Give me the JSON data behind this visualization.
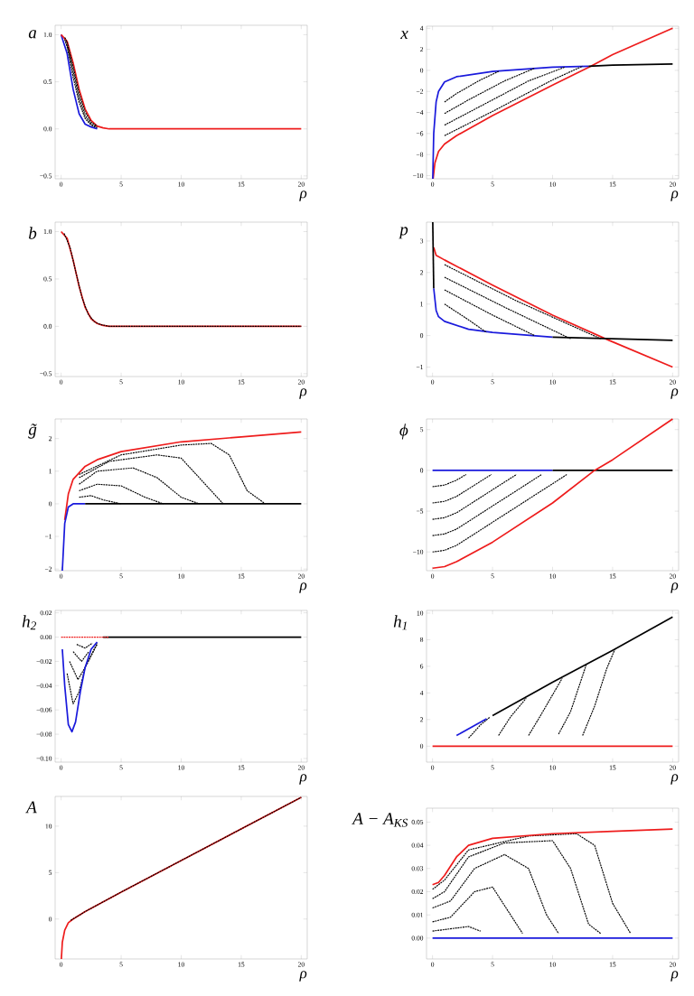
{
  "chart_data": [
    {
      "type": "line",
      "ylabel": "a",
      "xlabel": "ρ",
      "xlim": [
        -0.5,
        20.5
      ],
      "ylim": [
        -0.53,
        1.1
      ],
      "xticks": [
        0,
        5,
        10,
        15,
        20
      ],
      "yticks": [
        {
          "value": -0.5,
          "label": "−0.5"
        },
        {
          "value": 0,
          "label": "0.0"
        },
        {
          "value": 0.5,
          "label": "0.5"
        },
        {
          "value": 1,
          "label": "1.0"
        }
      ],
      "series": [
        {
          "color": "#000000",
          "line_style": "dashed",
          "x": [
            0.3,
            0.5,
            1,
            1.5,
            2,
            2.5,
            3
          ],
          "values": [
            0.95,
            0.87,
            0.55,
            0.28,
            0.11,
            0.04,
            0.01
          ]
        },
        {
          "color": "#000000",
          "line_style": "dashed",
          "x": [
            0.3,
            0.5,
            1,
            1.5,
            2,
            2.5,
            3
          ],
          "values": [
            0.96,
            0.9,
            0.61,
            0.33,
            0.14,
            0.05,
            0.02
          ]
        },
        {
          "color": "#1a1adc",
          "x": [
            0,
            0.5,
            1,
            1.5,
            2,
            2.5,
            3
          ],
          "values": [
            1,
            0.8,
            0.42,
            0.16,
            0.05,
            0.02,
            0
          ]
        },
        {
          "color": "#ee1c1c",
          "x": [
            0,
            0.5,
            1,
            1.5,
            2,
            2.5,
            3,
            3.5,
            4,
            5,
            20
          ],
          "values": [
            1,
            0.93,
            0.7,
            0.42,
            0.21,
            0.09,
            0.03,
            0.01,
            0,
            0,
            0
          ]
        },
        {
          "color": "#000000",
          "line_style": "dashed",
          "x": [
            0.3,
            0.5,
            1,
            1.5,
            2,
            2.5,
            3
          ],
          "values": [
            0.97,
            0.92,
            0.66,
            0.38,
            0.18,
            0.07,
            0.03
          ]
        }
      ]
    },
    {
      "type": "line",
      "ylabel": "x",
      "xlabel": "ρ",
      "xlim": [
        -0.5,
        20.5
      ],
      "ylim": [
        -10.3,
        4.2
      ],
      "xticks": [
        0,
        5,
        10,
        15,
        20
      ],
      "yticks": [
        {
          "value": -10,
          "label": "−10"
        },
        {
          "value": -8,
          "label": "−8"
        },
        {
          "value": -6,
          "label": "−6"
        },
        {
          "value": -4,
          "label": "−4"
        },
        {
          "value": -2,
          "label": "−2"
        },
        0,
        2,
        4
      ],
      "series": [
        {
          "color": "#ee1c1c",
          "x": [
            0.05,
            0.2,
            0.5,
            1,
            2,
            5,
            10,
            13.2,
            15,
            20
          ],
          "values": [
            -10.3,
            -8.8,
            -7.7,
            -7,
            -6.2,
            -4.3,
            -1.4,
            0.4,
            1.5,
            4
          ]
        },
        {
          "color": "#1a1adc",
          "x": [
            0.02,
            0.1,
            0.3,
            0.5,
            1,
            2,
            5,
            10,
            13
          ],
          "values": [
            -10.3,
            -6,
            -3,
            -2,
            -1.1,
            -0.6,
            -0.1,
            0.3,
            0.4
          ]
        },
        {
          "color": "#000000",
          "x": [
            13,
            15,
            20
          ],
          "values": [
            0.4,
            0.5,
            0.6
          ]
        },
        {
          "color": "#000000",
          "line_style": "dashed",
          "x": [
            1,
            2,
            4,
            5.5
          ],
          "values": [
            -3,
            -2.2,
            -0.9,
            -0.1
          ]
        },
        {
          "color": "#000000",
          "line_style": "dashed",
          "x": [
            1,
            3,
            6,
            8.5
          ],
          "values": [
            -4.1,
            -2.8,
            -1,
            0.2
          ]
        },
        {
          "color": "#000000",
          "line_style": "dashed",
          "x": [
            1,
            4,
            8,
            11
          ],
          "values": [
            -5.2,
            -3.4,
            -1,
            0.3
          ]
        },
        {
          "color": "#000000",
          "line_style": "dashed",
          "x": [
            1,
            5,
            10,
            12.5
          ],
          "values": [
            -6.2,
            -3.9,
            -0.9,
            0.4
          ]
        }
      ]
    },
    {
      "type": "line",
      "ylabel": "b",
      "xlabel": "ρ",
      "xlim": [
        -0.5,
        20.5
      ],
      "ylim": [
        -0.53,
        1.1
      ],
      "xticks": [
        0,
        5,
        10,
        15,
        20
      ],
      "yticks": [
        {
          "value": -0.5,
          "label": "−0.5"
        },
        {
          "value": 0,
          "label": "0.0"
        },
        {
          "value": 0.5,
          "label": "0.5"
        },
        {
          "value": 1,
          "label": "1.0"
        }
      ],
      "series": [
        {
          "color": "#ee1c1c",
          "x": [
            0,
            0.5,
            1,
            1.5,
            2,
            2.5,
            3,
            3.5,
            4,
            5,
            20
          ],
          "values": [
            1,
            0.93,
            0.7,
            0.42,
            0.2,
            0.08,
            0.03,
            0.01,
            0,
            0,
            0
          ]
        },
        {
          "color": "#000000",
          "line_style": "dashed",
          "x": [
            0.25,
            0.75,
            1.25,
            1.75,
            2.25,
            2.75,
            3.25,
            4,
            20
          ],
          "values": [
            0.98,
            0.83,
            0.56,
            0.3,
            0.13,
            0.05,
            0.02,
            0,
            0
          ]
        }
      ]
    },
    {
      "type": "line",
      "ylabel": "p",
      "xlabel": "ρ",
      "xlim": [
        -0.5,
        20.5
      ],
      "ylim": [
        -1.3,
        3.6
      ],
      "xticks": [
        0,
        5,
        10,
        15,
        20
      ],
      "yticks": [
        {
          "value": -1,
          "label": "−1"
        },
        0,
        1,
        2,
        3
      ],
      "series": [
        {
          "color": "#ee1c1c",
          "x": [
            0.1,
            0.3,
            1,
            5,
            10,
            14.7,
            20
          ],
          "values": [
            2.8,
            2.55,
            2.4,
            1.6,
            0.65,
            -0.15,
            -1
          ]
        },
        {
          "color": "#1a1adc",
          "x": [
            0.1,
            0.3,
            0.5,
            1,
            3,
            5,
            10
          ],
          "values": [
            1.5,
            0.8,
            0.6,
            0.45,
            0.2,
            0.1,
            -0.05
          ]
        },
        {
          "color": "#000000",
          "x": [
            0.02,
            0.1
          ],
          "values": [
            3.6,
            1.5
          ]
        },
        {
          "color": "#000000",
          "x": [
            10,
            15,
            20
          ],
          "values": [
            -0.05,
            -0.1,
            -0.15
          ]
        },
        {
          "color": "#000000",
          "line_style": "dashed",
          "x": [
            1,
            3,
            4.5
          ],
          "values": [
            1.0,
            0.5,
            0.1
          ]
        },
        {
          "color": "#000000",
          "line_style": "dashed",
          "x": [
            1,
            5,
            8.5
          ],
          "values": [
            1.45,
            0.65,
            0.0
          ]
        },
        {
          "color": "#000000",
          "line_style": "dashed",
          "x": [
            1,
            6,
            11.5
          ],
          "values": [
            1.85,
            0.9,
            -0.1
          ]
        },
        {
          "color": "#000000",
          "line_style": "dashed",
          "x": [
            1,
            7,
            14
          ],
          "values": [
            2.25,
            1.1,
            -0.1
          ]
        }
      ]
    },
    {
      "type": "line",
      "ylabel": "g̃",
      "xlabel": "ρ",
      "xlim": [
        -0.5,
        20.5
      ],
      "ylim": [
        -2.05,
        2.6
      ],
      "xticks": [
        0,
        5,
        10,
        15,
        20
      ],
      "yticks": [
        {
          "value": -2,
          "label": "−2"
        },
        {
          "value": -1,
          "label": "−1"
        },
        0,
        1,
        2
      ],
      "series": [
        {
          "color": "#000000",
          "line_style": "dashed",
          "x": [
            1.5,
            5,
            10,
            12.5,
            14,
            15.5,
            17
          ],
          "values": [
            0.9,
            1.5,
            1.8,
            1.85,
            1.5,
            0.4,
            0
          ]
        },
        {
          "color": "#000000",
          "line_style": "dashed",
          "x": [
            1.5,
            4,
            8,
            10,
            12,
            13.5
          ],
          "values": [
            0.8,
            1.3,
            1.5,
            1.4,
            0.6,
            0
          ]
        },
        {
          "color": "#000000",
          "line_style": "dashed",
          "x": [
            1.5,
            3,
            6,
            8,
            10,
            11.5
          ],
          "values": [
            0.6,
            1.0,
            1.1,
            0.8,
            0.2,
            0
          ]
        },
        {
          "color": "#000000",
          "line_style": "dashed",
          "x": [
            1.5,
            3,
            5,
            7,
            8.5
          ],
          "values": [
            0.4,
            0.6,
            0.55,
            0.2,
            0
          ]
        },
        {
          "color": "#000000",
          "line_style": "dashed",
          "x": [
            1.5,
            2.5,
            3.5,
            5
          ],
          "values": [
            0.2,
            0.25,
            0.12,
            0
          ]
        },
        {
          "color": "#ee1c1c",
          "x": [
            0.3,
            0.6,
            1,
            2,
            3,
            5,
            10,
            15,
            20
          ],
          "values": [
            -0.5,
            0.3,
            0.75,
            1.15,
            1.35,
            1.6,
            1.9,
            2.05,
            2.2
          ]
        },
        {
          "color": "#1a1adc",
          "x": [
            0.1,
            0.3,
            0.6,
            1,
            2
          ],
          "values": [
            -2.05,
            -0.6,
            -0.1,
            0,
            0
          ]
        },
        {
          "color": "#000000",
          "x": [
            2,
            20
          ],
          "values": [
            0,
            0
          ]
        }
      ]
    },
    {
      "type": "line",
      "ylabel": "ϕ",
      "xlabel": "ρ",
      "xlim": [
        -0.5,
        20.5
      ],
      "ylim": [
        -12.3,
        6.3
      ],
      "xticks": [
        0,
        5,
        10,
        15,
        20
      ],
      "yticks": [
        {
          "value": -10,
          "label": "−10"
        },
        {
          "value": -5,
          "label": "−5"
        },
        0,
        5
      ],
      "series": [
        {
          "color": "#000000",
          "line_style": "dashed",
          "x": [
            0,
            1,
            2,
            2.8
          ],
          "values": [
            -2,
            -1.8,
            -1.2,
            -0.5
          ]
        },
        {
          "color": "#000000",
          "line_style": "dashed",
          "x": [
            0,
            1,
            2,
            4.9
          ],
          "values": [
            -4,
            -3.8,
            -3.2,
            -0.5
          ]
        },
        {
          "color": "#000000",
          "line_style": "dashed",
          "x": [
            0,
            1,
            2,
            7
          ],
          "values": [
            -6,
            -5.8,
            -5.2,
            -0.5
          ]
        },
        {
          "color": "#000000",
          "line_style": "dashed",
          "x": [
            0,
            1,
            2,
            9.1
          ],
          "values": [
            -8,
            -7.8,
            -7.2,
            -0.5
          ]
        },
        {
          "color": "#000000",
          "line_style": "dashed",
          "x": [
            0,
            1,
            2,
            11.2
          ],
          "values": [
            -10,
            -9.8,
            -9.2,
            -0.5
          ]
        },
        {
          "color": "#1a1adc",
          "x": [
            0,
            10
          ],
          "values": [
            0,
            0
          ]
        },
        {
          "color": "#000000",
          "x": [
            10,
            20
          ],
          "values": [
            0,
            0
          ]
        },
        {
          "color": "#ee1c1c",
          "x": [
            0,
            1,
            2,
            5,
            10,
            13.5,
            15,
            20
          ],
          "values": [
            -12,
            -11.8,
            -11.2,
            -8.8,
            -4,
            0,
            1.3,
            6.3
          ]
        }
      ]
    },
    {
      "type": "line",
      "ylabel": "h$_{2}$",
      "xlabel": "ρ",
      "xlim": [
        -0.5,
        20.5
      ],
      "ylim": [
        -0.103,
        0.022
      ],
      "xticks": [
        0,
        5,
        10,
        15,
        20
      ],
      "yticks": [
        {
          "value": -0.1,
          "label": "−0.10"
        },
        {
          "value": -0.08,
          "label": "−0.08"
        },
        {
          "value": -0.06,
          "label": "−0.06"
        },
        {
          "value": -0.04,
          "label": "−0.04"
        },
        {
          "value": -0.02,
          "label": "−0.02"
        },
        {
          "value": 0,
          "label": "0.00"
        },
        0.02
      ],
      "series": [
        {
          "color": "#000000",
          "line_style": "dashed",
          "x": [
            0.5,
            1,
            1.5,
            2,
            3
          ],
          "values": [
            -0.03,
            -0.055,
            -0.045,
            -0.025,
            -0.005
          ]
        },
        {
          "color": "#000000",
          "line_style": "dashed",
          "x": [
            0.7,
            1.4,
            2,
            3
          ],
          "values": [
            -0.02,
            -0.035,
            -0.025,
            -0.006
          ]
        },
        {
          "color": "#000000",
          "line_style": "dashed",
          "x": [
            1,
            1.7,
            2.3
          ],
          "values": [
            -0.012,
            -0.02,
            -0.012
          ]
        },
        {
          "color": "#000000",
          "line_style": "dashed",
          "x": [
            1.3,
            2,
            2.6
          ],
          "values": [
            -0.006,
            -0.009,
            -0.005
          ]
        },
        {
          "color": "#1a1adc",
          "x": [
            0.1,
            0.3,
            0.6,
            0.9,
            1.2,
            1.6,
            2,
            2.5,
            3
          ],
          "values": [
            -0.01,
            -0.04,
            -0.072,
            -0.078,
            -0.07,
            -0.045,
            -0.025,
            -0.01,
            -0.004
          ]
        },
        {
          "color": "#000000",
          "x": [
            3.5,
            20
          ],
          "values": [
            0,
            0
          ]
        },
        {
          "color": "#ee1c1c",
          "line_style": "dashed",
          "x": [
            0,
            4
          ],
          "values": [
            0,
            0
          ]
        }
      ]
    },
    {
      "type": "line",
      "ylabel": "h$_{1}$",
      "xlabel": "ρ",
      "xlim": [
        -0.5,
        20.5
      ],
      "ylim": [
        -1.2,
        10.2
      ],
      "xticks": [
        0,
        5,
        10,
        15,
        20
      ],
      "yticks": [
        0,
        2,
        4,
        6,
        8,
        10
      ],
      "series": [
        {
          "color": "#000000",
          "line_style": "dashed",
          "x": [
            3,
            4,
            4.8
          ],
          "values": [
            0.6,
            1.6,
            2.2
          ]
        },
        {
          "color": "#000000",
          "line_style": "dashed",
          "x": [
            5.5,
            6.5,
            7.8
          ],
          "values": [
            0.8,
            2.2,
            3.6
          ]
        },
        {
          "color": "#000000",
          "line_style": "dashed",
          "x": [
            8,
            9,
            10.8
          ],
          "values": [
            0.8,
            2.3,
            5.1
          ]
        },
        {
          "color": "#000000",
          "line_style": "dashed",
          "x": [
            10.5,
            11.5,
            12.8
          ],
          "values": [
            0.9,
            2.6,
            6.1
          ]
        },
        {
          "color": "#000000",
          "line_style": "dashed",
          "x": [
            12.5,
            13.5,
            14.5,
            15.2
          ],
          "values": [
            0.8,
            3,
            5.8,
            7.3
          ]
        },
        {
          "color": "#ee1c1c",
          "x": [
            0,
            20
          ],
          "values": [
            0,
            0
          ]
        },
        {
          "color": "#1a1adc",
          "x": [
            2,
            4.5
          ],
          "values": [
            0.8,
            2.05
          ]
        },
        {
          "color": "#000000",
          "x": [
            5,
            10,
            15,
            20
          ],
          "values": [
            2.3,
            4.8,
            7.2,
            9.7
          ]
        }
      ]
    },
    {
      "type": "line",
      "ylabel": "A",
      "xlabel": "ρ",
      "xlim": [
        -0.5,
        20.5
      ],
      "ylim": [
        -4.3,
        13.2
      ],
      "xticks": [
        0,
        5,
        10,
        15,
        20
      ],
      "yticks": [
        0,
        5,
        10
      ],
      "series": [
        {
          "color": "#ee1c1c",
          "x": [
            0.02,
            0.1,
            0.3,
            0.6,
            1,
            2,
            5,
            10,
            15,
            20
          ],
          "values": [
            -4.3,
            -2.5,
            -1.2,
            -0.4,
            0,
            0.8,
            2.9,
            6.3,
            9.7,
            13.1
          ]
        },
        {
          "color": "#000000",
          "line_style": "dashed",
          "x": [
            0.8,
            2,
            5,
            10,
            15,
            20
          ],
          "values": [
            -0.15,
            0.8,
            2.9,
            6.3,
            9.7,
            13.1
          ]
        }
      ]
    },
    {
      "type": "line",
      "ylabel": "A − A$_{KS}$",
      "xlabel": "ρ",
      "xlim": [
        -0.5,
        20.5
      ],
      "ylim": [
        -0.009,
        0.056
      ],
      "xticks": [
        0,
        5,
        10,
        15,
        20
      ],
      "yticks": [
        {
          "value": 0,
          "label": "0.00"
        },
        {
          "value": 0.01,
          "label": "0.01"
        },
        {
          "value": 0.02,
          "label": "0.02"
        },
        {
          "value": 0.03,
          "label": "0.03"
        },
        {
          "value": 0.04,
          "label": "0.04"
        },
        {
          "value": 0.05,
          "label": "0.05"
        }
      ],
      "series": [
        {
          "color": "#000000",
          "line_style": "dashed",
          "x": [
            0,
            1,
            3,
            8,
            12,
            13.5,
            15,
            16.5
          ],
          "values": [
            0.021,
            0.025,
            0.038,
            0.044,
            0.045,
            0.04,
            0.015,
            0.002
          ]
        },
        {
          "color": "#000000",
          "line_style": "dashed",
          "x": [
            0,
            1,
            3,
            6,
            10,
            11.5,
            13,
            14
          ],
          "values": [
            0.017,
            0.02,
            0.035,
            0.041,
            0.042,
            0.03,
            0.006,
            0.002
          ]
        },
        {
          "color": "#000000",
          "line_style": "dashed",
          "x": [
            0,
            1.5,
            3.5,
            6,
            8,
            9.5,
            10.5
          ],
          "values": [
            0.013,
            0.016,
            0.03,
            0.036,
            0.03,
            0.01,
            0.002
          ]
        },
        {
          "color": "#000000",
          "line_style": "dashed",
          "x": [
            0,
            1.5,
            3.5,
            5,
            6.5,
            7.5
          ],
          "values": [
            0.007,
            0.009,
            0.02,
            0.022,
            0.01,
            0.002
          ]
        },
        {
          "color": "#000000",
          "line_style": "dashed",
          "x": [
            0,
            1.5,
            3,
            4
          ],
          "values": [
            0.003,
            0.004,
            0.005,
            0.003
          ]
        },
        {
          "color": "#ee1c1c",
          "x": [
            0,
            0.5,
            1,
            2,
            3,
            5,
            10,
            15,
            20
          ],
          "values": [
            0.023,
            0.024,
            0.027,
            0.035,
            0.04,
            0.043,
            0.045,
            0.046,
            0.047
          ]
        },
        {
          "color": "#1a1adc",
          "x": [
            0,
            20
          ],
          "values": [
            0,
            0
          ]
        }
      ]
    }
  ]
}
